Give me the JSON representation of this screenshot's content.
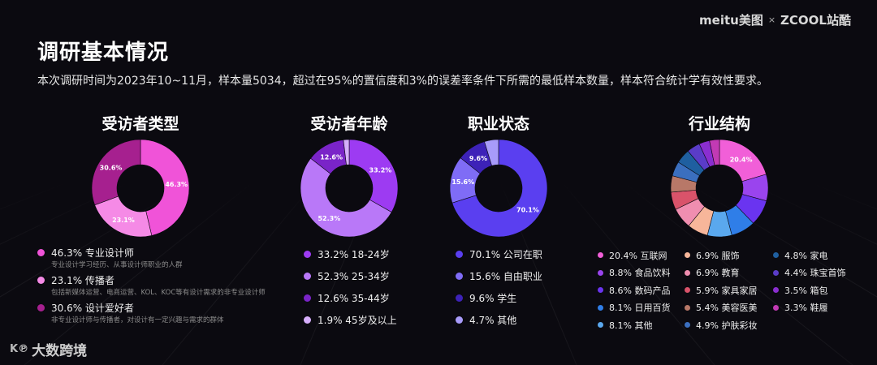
{
  "header": {
    "logo_meitu": "meitu美图",
    "logo_sep": "×",
    "logo_zcool": "ZCOOL站酷",
    "title": "调研基本情况",
    "subtitle": "本次调研时间为2023年10~11月，样本量5034，超过在95%的置信度和3%的误差率条件下所需的最低样本数量，样本符合统计学有效性要求。"
  },
  "footer": {
    "brand_mark": "K℗",
    "brand_text": "大数跨境"
  },
  "chart_data": [
    {
      "type": "pie",
      "title": "受访者类型",
      "slices": [
        {
          "label": "46.3% 专业设计师",
          "value": 46.3,
          "pct_label": "46.3%",
          "color": "#f053d8",
          "desc": "专业设计学习经历、从事设计师职业的人群"
        },
        {
          "label": "23.1% 传播者",
          "value": 23.1,
          "pct_label": "23.1%",
          "color": "#f58ae6",
          "desc": "包括新媒体运营、电商运营、KOL、KOC等有设计需求的非专业设计师"
        },
        {
          "label": "30.6% 设计爱好者",
          "value": 30.6,
          "pct_label": "30.6%",
          "color": "#a6208f",
          "desc": "非专业设计师与传播者，对设计有一定兴趣与需求的群体"
        }
      ]
    },
    {
      "type": "pie",
      "title": "受访者年龄",
      "slices": [
        {
          "label": "33.2% 18-24岁",
          "value": 33.2,
          "pct_label": "33.2%",
          "color": "#9d3bf2"
        },
        {
          "label": "52.3% 25-34岁",
          "value": 52.3,
          "pct_label": "52.3%",
          "color": "#b978f8"
        },
        {
          "label": "12.6% 35-44岁",
          "value": 12.6,
          "pct_label": "12.6%",
          "color": "#7a24c8"
        },
        {
          "label": "1.9% 45岁及以上",
          "value": 1.9,
          "pct_label": "",
          "color": "#d6aefc"
        }
      ]
    },
    {
      "type": "pie",
      "title": "职业状态",
      "slices": [
        {
          "label": "70.1% 公司在职",
          "value": 70.1,
          "pct_label": "70.1%",
          "color": "#5a3ff0"
        },
        {
          "label": "15.6% 自由职业",
          "value": 15.6,
          "pct_label": "15.6%",
          "color": "#7f6cf6"
        },
        {
          "label": "9.6% 学生",
          "value": 9.6,
          "pct_label": "9.6%",
          "color": "#3d22b8"
        },
        {
          "label": "4.7% 其他",
          "value": 4.7,
          "pct_label": "",
          "color": "#a89bfa"
        }
      ]
    },
    {
      "type": "pie",
      "title": "行业结构",
      "slices": [
        {
          "label": "20.4% 互联网",
          "value": 20.4,
          "pct_label": "20.4%",
          "color": "#f15fd8"
        },
        {
          "label": "8.8% 食品饮料",
          "value": 8.8,
          "pct_label": "",
          "color": "#9a44ee"
        },
        {
          "label": "8.6% 数码产品",
          "value": 8.6,
          "pct_label": "",
          "color": "#6a34f0"
        },
        {
          "label": "8.1% 日用百货",
          "value": 8.1,
          "pct_label": "",
          "color": "#2f7ee8"
        },
        {
          "label": "8.1% 其他",
          "value": 8.1,
          "pct_label": "",
          "color": "#5aa8ee"
        },
        {
          "label": "6.9% 服饰",
          "value": 6.9,
          "pct_label": "",
          "color": "#f7b69a"
        },
        {
          "label": "6.9% 教育",
          "value": 6.9,
          "pct_label": "",
          "color": "#f08eb0"
        },
        {
          "label": "5.9% 家具家居",
          "value": 5.9,
          "pct_label": "",
          "color": "#d9536a"
        },
        {
          "label": "5.4% 美容医美",
          "value": 5.4,
          "pct_label": "",
          "color": "#b87868"
        },
        {
          "label": "4.9% 护肤彩妆",
          "value": 4.9,
          "pct_label": "",
          "color": "#3b6fbf"
        },
        {
          "label": "4.8% 家电",
          "value": 4.8,
          "pct_label": "",
          "color": "#1f5fa0"
        },
        {
          "label": "4.4% 珠宝首饰",
          "value": 4.4,
          "pct_label": "",
          "color": "#5a3cc8"
        },
        {
          "label": "3.5% 箱包",
          "value": 3.5,
          "pct_label": "",
          "color": "#8a2ed0"
        },
        {
          "label": "3.3% 鞋履",
          "value": 3.3,
          "pct_label": "",
          "color": "#c23ab4"
        }
      ]
    }
  ]
}
